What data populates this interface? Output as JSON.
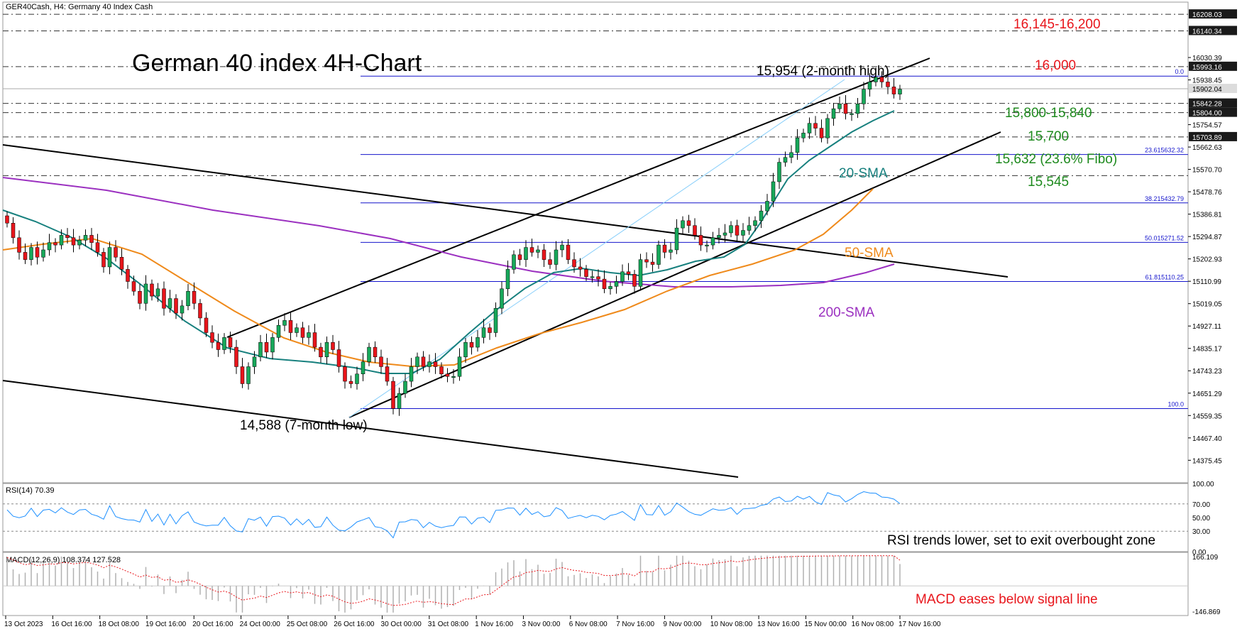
{
  "header": {
    "symbol_line": "GER40Cash, H4:  Germany 40 Index Cash"
  },
  "chart_data": {
    "type": "candlestick",
    "title": "German 40 index 4H-Chart",
    "ylim": [
      14283,
      16258
    ],
    "y_ticks": [
      "16030.39",
      "15938.45",
      "15754.57",
      "15662.63",
      "15570.70",
      "15478.76",
      "15386.81",
      "15294.87",
      "15202.93",
      "15110.99",
      "15019.05",
      "14927.11",
      "14835.17",
      "14743.23",
      "14651.29",
      "14559.35",
      "14467.40",
      "14375.45"
    ],
    "price_boxes": [
      {
        "label": "16208.03",
        "value": 16208,
        "style": "dark"
      },
      {
        "label": "16140.34",
        "value": 16140,
        "style": "dark"
      },
      {
        "label": "15993.16",
        "value": 15993,
        "style": "dark"
      },
      {
        "label": "15902.04",
        "value": 15902,
        "style": "light"
      },
      {
        "label": "15842.28",
        "value": 15842,
        "style": "dark"
      },
      {
        "label": "15804.00",
        "value": 15804,
        "style": "dark"
      },
      {
        "label": "15703.89",
        "value": 15704,
        "style": "dark"
      }
    ],
    "x_ticks": [
      "13 Oct 2023",
      "16 Oct 16:00",
      "18 Oct 08:00",
      "19 Oct 16:00",
      "20 Oct 16:00",
      "24 Oct 00:00",
      "25 Oct 08:00",
      "26 Oct 16:00",
      "30 Oct 00:00",
      "31 Oct 08:00",
      "1 Nov 16:00",
      "3 Nov 00:00",
      "6 Nov 08:00",
      "7 Nov 16:00",
      "9 Nov 00:00",
      "10 Nov 08:00",
      "13 Nov 16:00",
      "15 Nov 00:00",
      "16 Nov 08:00",
      "17 Nov 16:00"
    ],
    "horizontal_levels": [
      16208,
      16140,
      15993,
      15842,
      15804,
      15704,
      15545
    ],
    "fibonacci": [
      {
        "label": "0.0",
        "value": 15954
      },
      {
        "label": "23.6",
        "value": 15632
      },
      {
        "label": "38.2",
        "value": 15433
      },
      {
        "label": "50.0",
        "value": 15271
      },
      {
        "label": "61.8",
        "value": 15110
      },
      {
        "label": "100.0",
        "value": 14588
      }
    ],
    "fib_price_labels": [
      "15632.32",
      "15432.79",
      "15271.52",
      "15110.25"
    ],
    "annotations": [
      {
        "text": "16,145-16,200",
        "color": "#e8151b"
      },
      {
        "text": "16,000",
        "color": "#e8151b"
      },
      {
        "text": "15,954 (2-month high)",
        "color": "#000000"
      },
      {
        "text": "15,800-15,840",
        "color": "#1e8a1e"
      },
      {
        "text": "15,700",
        "color": "#1e8a1e"
      },
      {
        "text": "15,632 (23.6% Fibo)",
        "color": "#1e8a1e"
      },
      {
        "text": "15,545",
        "color": "#1e8a1e"
      },
      {
        "text": "14,588 (7-month low)",
        "color": "#000000"
      }
    ],
    "indicator_labels": [
      {
        "text": "20-SMA",
        "color": "#17807e"
      },
      {
        "text": "50-SMA",
        "color": "#ef8a1b"
      },
      {
        "text": "200-SMA",
        "color": "#9b30c0"
      }
    ],
    "closes": [
      15350,
      15290,
      15230,
      15200,
      15250,
      15210,
      15240,
      15270,
      15260,
      15300,
      15290,
      15260,
      15280,
      15300,
      15270,
      15230,
      15170,
      15250,
      15210,
      15160,
      15110,
      15070,
      15020,
      15100,
      15050,
      15080,
      15000,
      15040,
      14980,
      15010,
      15070,
      15020,
      14960,
      14900,
      14860,
      14830,
      14880,
      14840,
      14760,
      14690,
      14760,
      14800,
      14860,
      14820,
      14880,
      14930,
      14950,
      14900,
      14920,
      14880,
      14900,
      14840,
      14800,
      14860,
      14830,
      14760,
      14700,
      14690,
      14730,
      14780,
      14840,
      14800,
      14760,
      14700,
      14588,
      14650,
      14700,
      14760,
      14800,
      14760,
      14780,
      14760,
      14730,
      14720,
      14720,
      14800,
      14860,
      14840,
      14880,
      14920,
      14900,
      15000,
      15080,
      15160,
      15220,
      15200,
      15250,
      15230,
      15240,
      15200,
      15180,
      15240,
      15260,
      15200,
      15170,
      15160,
      15130,
      15130,
      15120,
      15080,
      15090,
      15110,
      15150,
      15140,
      15090,
      15200,
      15190,
      15180,
      15260,
      15230,
      15240,
      15330,
      15360,
      15340,
      15300,
      15260,
      15260,
      15290,
      15300,
      15310,
      15340,
      15300,
      15320,
      15340,
      15360,
      15400,
      15440,
      15520,
      15600,
      15620,
      15640,
      15700,
      15720,
      15760,
      15740,
      15700,
      15780,
      15820,
      15840,
      15800,
      15800,
      15840,
      15900,
      15930,
      15950,
      15930,
      15910,
      15880,
      15900
    ],
    "rsi": {
      "label": "RSI(14) 70.39",
      "levels": [
        100,
        70,
        50,
        30,
        0
      ],
      "tick_labels": [
        "100.00",
        "70.00",
        "50.00",
        "30.00",
        "0.00"
      ],
      "last": 70.39,
      "annotation": "RSI trends lower, set to exit overbought zone"
    },
    "macd": {
      "label": "MACD(12,26,9) 108.374 127.528",
      "range": [
        -146.86,
        166.1
      ],
      "tick_labels": [
        "166.109",
        "-146.869"
      ],
      "macd_last": 108.374,
      "signal_last": 127.528,
      "annotation": "MACD eases below signal line"
    }
  },
  "colors": {
    "bull": "#17a85a",
    "bear": "#e8151b",
    "fib": "#1414cc",
    "sma20": "#17807e",
    "sma50": "#ef8a1b",
    "sma200": "#9b30c0",
    "rsi": "#1e90ff",
    "macd_hist": "#b0b0b0",
    "macd_signal": "#e8151b"
  }
}
